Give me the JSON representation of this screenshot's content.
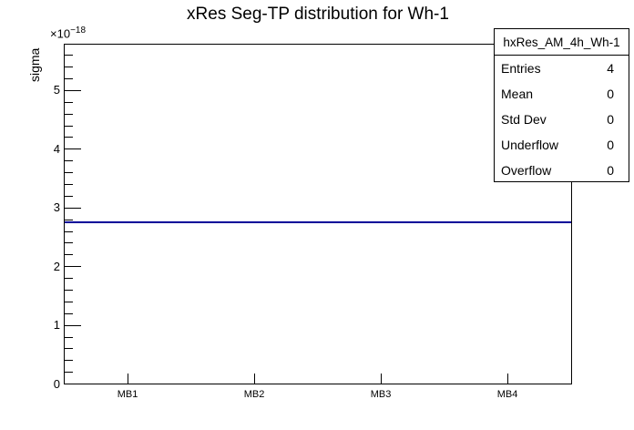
{
  "page": {
    "background": "#ffffff"
  },
  "chart_data": {
    "type": "line",
    "title": "xRes Seg-TP distribution for Wh-1",
    "ylabel": "sigma",
    "xlabel": "",
    "y_exponent": {
      "base": "×10",
      "power": "−18"
    },
    "categories": [
      "MB1",
      "MB2",
      "MB3",
      "MB4"
    ],
    "series": [
      {
        "name": "hxRes_AM_4h_Wh-1",
        "values": [
          2.75e-18,
          2.75e-18,
          2.75e-18,
          2.75e-18
        ]
      }
    ],
    "flat_line_value": 2.75e-18,
    "value_scale": 1e-18,
    "ylim": [
      0,
      5.79e-18
    ],
    "y_axis": {
      "max_units": 5.79,
      "major_step": 1,
      "minor_step": 0.2,
      "major_labels": [
        "0",
        "1",
        "2",
        "3",
        "4",
        "5"
      ]
    },
    "grid": false,
    "legend_position": "none",
    "line_color": "#000099",
    "axis_color": "#000000"
  },
  "stats_box": {
    "title": "hxRes_AM_4h_Wh-1",
    "rows": [
      {
        "label": "Entries",
        "value": "4"
      },
      {
        "label": "Mean",
        "value": "0"
      },
      {
        "label": "Std Dev",
        "value": "0"
      },
      {
        "label": "Underflow",
        "value": "0"
      },
      {
        "label": "Overflow",
        "value": "0"
      }
    ]
  }
}
